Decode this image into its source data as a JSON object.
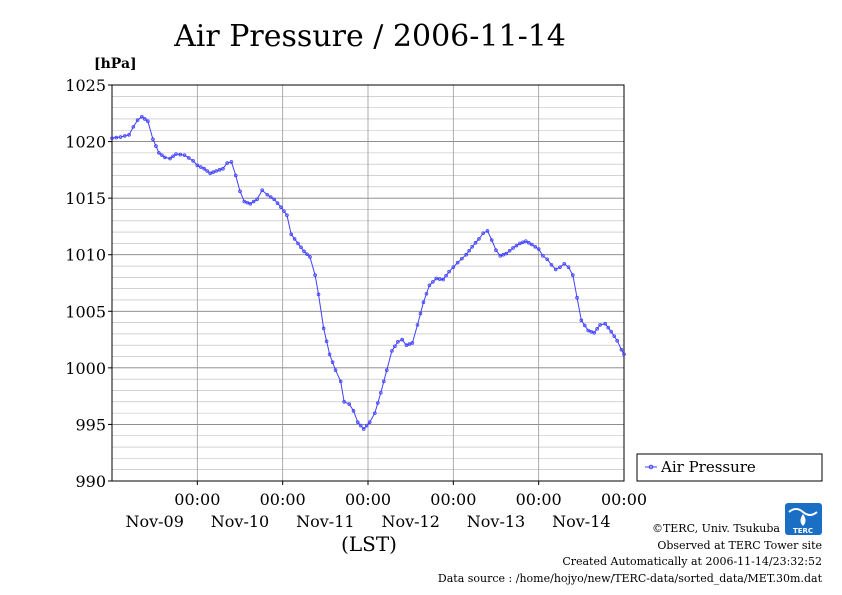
{
  "chart_data": {
    "type": "line",
    "title": "Air Pressure / 2006-11-14",
    "ylabel": "[hPa]",
    "xlabel": "(LST)",
    "ylim": [
      990,
      1025
    ],
    "y_ticks": [
      990,
      995,
      1000,
      1005,
      1010,
      1015,
      1020,
      1025
    ],
    "y_tick_labels": [
      "990",
      "995",
      "1000",
      "1005",
      "1010",
      "1015",
      "1020",
      "1025"
    ],
    "x_range_days": [
      0,
      6
    ],
    "x_ticks": [
      {
        "time": "00:00",
        "date": "Nov-09"
      },
      {
        "time": "00:00",
        "date": "Nov-10"
      },
      {
        "time": "00:00",
        "date": "Nov-11"
      },
      {
        "time": "00:00",
        "date": "Nov-12"
      },
      {
        "time": "00:00",
        "date": "Nov-13"
      },
      {
        "time": "00:00",
        "date": "Nov-14"
      }
    ],
    "grid": true,
    "legend_position": "right",
    "line_color": "#4040ff",
    "series": [
      {
        "name": "Air Pressure",
        "points": [
          [
            0.0,
            1020.3
          ],
          [
            0.1,
            1020.4
          ],
          [
            0.2,
            1020.6
          ],
          [
            0.25,
            1021.3
          ],
          [
            0.3,
            1021.9
          ],
          [
            0.35,
            1022.2
          ],
          [
            0.42,
            1021.8
          ],
          [
            0.48,
            1020.2
          ],
          [
            0.55,
            1019.0
          ],
          [
            0.62,
            1018.6
          ],
          [
            0.68,
            1018.5
          ],
          [
            0.75,
            1018.9
          ],
          [
            0.85,
            1018.8
          ],
          [
            0.95,
            1018.3
          ],
          [
            1.0,
            1017.9
          ],
          [
            1.08,
            1017.6
          ],
          [
            1.15,
            1017.2
          ],
          [
            1.22,
            1017.4
          ],
          [
            1.3,
            1017.6
          ],
          [
            1.35,
            1018.1
          ],
          [
            1.4,
            1018.2
          ],
          [
            1.45,
            1017.0
          ],
          [
            1.5,
            1015.6
          ],
          [
            1.55,
            1014.7
          ],
          [
            1.62,
            1014.5
          ],
          [
            1.7,
            1014.9
          ],
          [
            1.76,
            1015.7
          ],
          [
            1.82,
            1015.3
          ],
          [
            1.9,
            1014.9
          ],
          [
            1.98,
            1014.2
          ],
          [
            2.05,
            1013.5
          ],
          [
            2.1,
            1011.8
          ],
          [
            2.18,
            1011.0
          ],
          [
            2.25,
            1010.3
          ],
          [
            2.32,
            1009.8
          ],
          [
            2.38,
            1008.2
          ],
          [
            2.42,
            1006.5
          ],
          [
            2.48,
            1003.5
          ],
          [
            2.55,
            1001.2
          ],
          [
            2.62,
            999.8
          ],
          [
            2.68,
            998.8
          ],
          [
            2.72,
            997.0
          ],
          [
            2.78,
            996.8
          ],
          [
            2.83,
            996.2
          ],
          [
            2.88,
            995.2
          ],
          [
            2.95,
            994.6
          ],
          [
            3.02,
            995.2
          ],
          [
            3.08,
            996.0
          ],
          [
            3.15,
            997.8
          ],
          [
            3.22,
            999.8
          ],
          [
            3.28,
            1001.5
          ],
          [
            3.35,
            1002.3
          ],
          [
            3.4,
            1002.5
          ],
          [
            3.45,
            1002.0
          ],
          [
            3.52,
            1002.2
          ],
          [
            3.58,
            1003.8
          ],
          [
            3.65,
            1005.8
          ],
          [
            3.72,
            1007.3
          ],
          [
            3.8,
            1007.9
          ],
          [
            3.88,
            1007.8
          ],
          [
            3.95,
            1008.5
          ],
          [
            4.05,
            1009.3
          ],
          [
            4.15,
            1010.0
          ],
          [
            4.22,
            1010.7
          ],
          [
            4.3,
            1011.4
          ],
          [
            4.35,
            1011.9
          ],
          [
            4.4,
            1012.1
          ],
          [
            4.45,
            1011.3
          ],
          [
            4.5,
            1010.4
          ],
          [
            4.55,
            1009.9
          ],
          [
            4.62,
            1010.1
          ],
          [
            4.7,
            1010.6
          ],
          [
            4.78,
            1011.0
          ],
          [
            4.85,
            1011.2
          ],
          [
            4.92,
            1010.9
          ],
          [
            5.0,
            1010.5
          ],
          [
            5.05,
            1009.9
          ],
          [
            5.1,
            1009.6
          ],
          [
            5.15,
            1009.1
          ],
          [
            5.2,
            1008.7
          ],
          [
            5.25,
            1008.9
          ],
          [
            5.3,
            1009.2
          ],
          [
            5.35,
            1008.9
          ],
          [
            5.4,
            1008.2
          ],
          [
            5.45,
            1006.2
          ],
          [
            5.5,
            1004.2
          ],
          [
            5.58,
            1003.3
          ],
          [
            5.65,
            1003.1
          ],
          [
            5.72,
            1003.8
          ],
          [
            5.78,
            1003.9
          ],
          [
            5.85,
            1003.2
          ],
          [
            5.92,
            1002.4
          ],
          [
            5.97,
            1001.6
          ],
          [
            6.0,
            1001.2
          ]
        ]
      }
    ]
  },
  "footer": {
    "credit": "©TERC, Univ. Tsukuba",
    "observed": "Observed at TERC Tower site",
    "created": "Created Automatically at 2006-11-14/23:32:52",
    "source": "Data source : /home/hojyo/new/TERC-data/sorted_data/MET.30m.dat"
  },
  "logo": {
    "text": "TERC",
    "color": "#1a6fc4"
  }
}
